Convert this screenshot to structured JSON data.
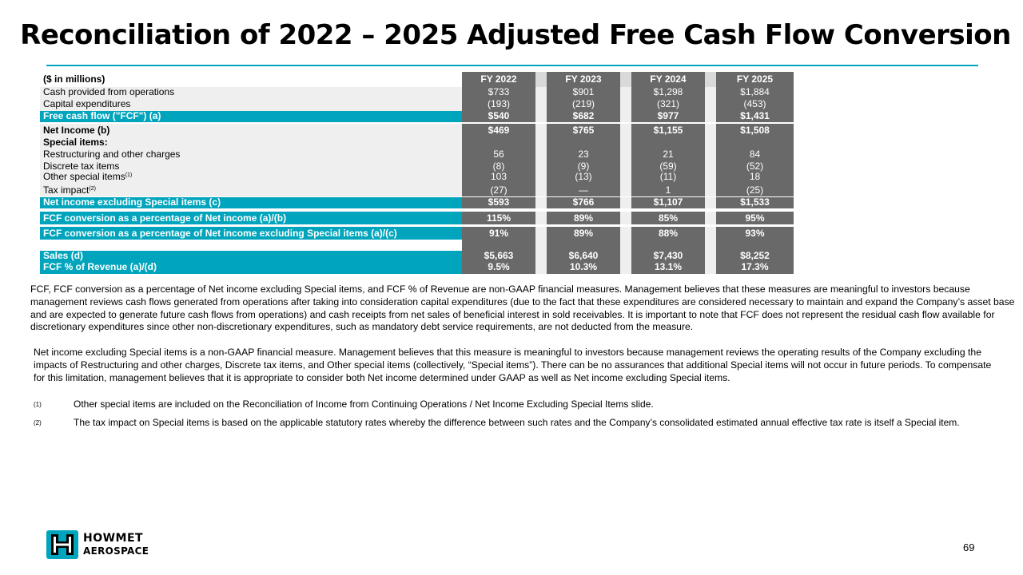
{
  "title": "Reconciliation of 2022 – 2025 Adjusted Free Cash Flow Conversion",
  "colors": {
    "accent": "#00a5bd",
    "value_bg": "#696969",
    "label_bg": "#efefef"
  },
  "table": {
    "header_label": "($ in millions)",
    "years": [
      "FY 2022",
      "FY 2023",
      "FY 2024",
      "FY 2025"
    ],
    "rows": {
      "cash_ops": {
        "label": "Cash provided from operations",
        "values": [
          "$733",
          "$901",
          "$1,298",
          "$1,884"
        ]
      },
      "capex": {
        "label": "Capital expenditures",
        "values": [
          "(193)",
          "(219)",
          "(321)",
          "(453)"
        ]
      },
      "fcf": {
        "label": "Free cash flow (\"FCF\") (a)",
        "values": [
          "$540",
          "$682",
          "$977",
          "$1,431"
        ]
      },
      "net_income": {
        "label": "Net Income (b)",
        "values": [
          "$469",
          "$765",
          "$1,155",
          "$1,508"
        ]
      },
      "special_header": {
        "label": "Special items:"
      },
      "restructuring": {
        "label": "Restructuring and other charges",
        "values": [
          "56",
          "23",
          "21",
          "84"
        ]
      },
      "discrete_tax": {
        "label": "Discrete tax items",
        "values": [
          "(8)",
          "(9)",
          "(59)",
          "(52)"
        ]
      },
      "other_special": {
        "label": "Other special items",
        "sup": "(1)",
        "values": [
          "103",
          "(13)",
          "(11)",
          "18"
        ]
      },
      "tax_impact": {
        "label": "Tax impact",
        "sup": "(2)",
        "values": [
          "(27)",
          "—",
          "1",
          "(25)"
        ]
      },
      "ni_excl": {
        "label": "Net income excluding Special items (c)",
        "values": [
          "$593",
          "$766",
          "$1,107",
          "$1,533"
        ]
      },
      "fcf_conv": {
        "label": "FCF conversion as a percentage of Net income (a)/(b)",
        "values": [
          "115%",
          "89%",
          "85%",
          "95%"
        ]
      },
      "fcf_conv_excl": {
        "label": "FCF conversion as a percentage of Net income excluding Special items (a)/(c)",
        "values": [
          "91%",
          "89%",
          "88%",
          "93%"
        ]
      },
      "sales": {
        "label": "Sales (d)",
        "values": [
          "$5,663",
          "$6,640",
          "$7,430",
          "$8,252"
        ]
      },
      "fcf_rev": {
        "label": "FCF % of Revenue (a)/(d)",
        "values": [
          "9.5%",
          "10.3%",
          "13.1%",
          "17.3%"
        ]
      }
    }
  },
  "paragraphs": {
    "p1": "FCF, FCF conversion as a percentage of Net income excluding Special items, and FCF % of Revenue are non-GAAP financial measures. Management believes that these measures are meaningful to investors because management reviews cash flows generated from operations after taking into consideration capital expenditures (due to the fact that these expenditures are considered necessary to maintain and expand the Company’s asset base and are expected to generate future cash flows from operations) and cash receipts from net sales of beneficial interest in sold receivables. It is important to note that FCF does not represent the residual cash flow available for discretionary expenditures since other non-discretionary expenditures, such as mandatory debt service requirements, are not deducted from the measure.",
    "p2": "Net income excluding Special items is a non-GAAP financial measure. Management believes that this measure is meaningful to investors because management reviews the operating results of the Company excluding the impacts of Restructuring and other charges, Discrete tax items, and Other special items (collectively, “Special items”). There can be no assurances that additional Special items will not occur in future periods. To compensate for this limitation, management believes that it is appropriate to consider both Net income determined under GAAP as well as Net income excluding Special items."
  },
  "footnotes": [
    {
      "mark": "(1)",
      "text": "Other special items are included on the Reconciliation of Income from Continuing Operations / Net Income Excluding Special Items slide."
    },
    {
      "mark": "(2)",
      "text": "The tax impact on Special items is based on the applicable statutory rates whereby the difference between such rates and the Company’s consolidated estimated annual effective tax rate is itself a Special item."
    }
  ],
  "logo": {
    "line1": "HOWMET",
    "line2": "AEROSPACE"
  },
  "page_number": "69"
}
